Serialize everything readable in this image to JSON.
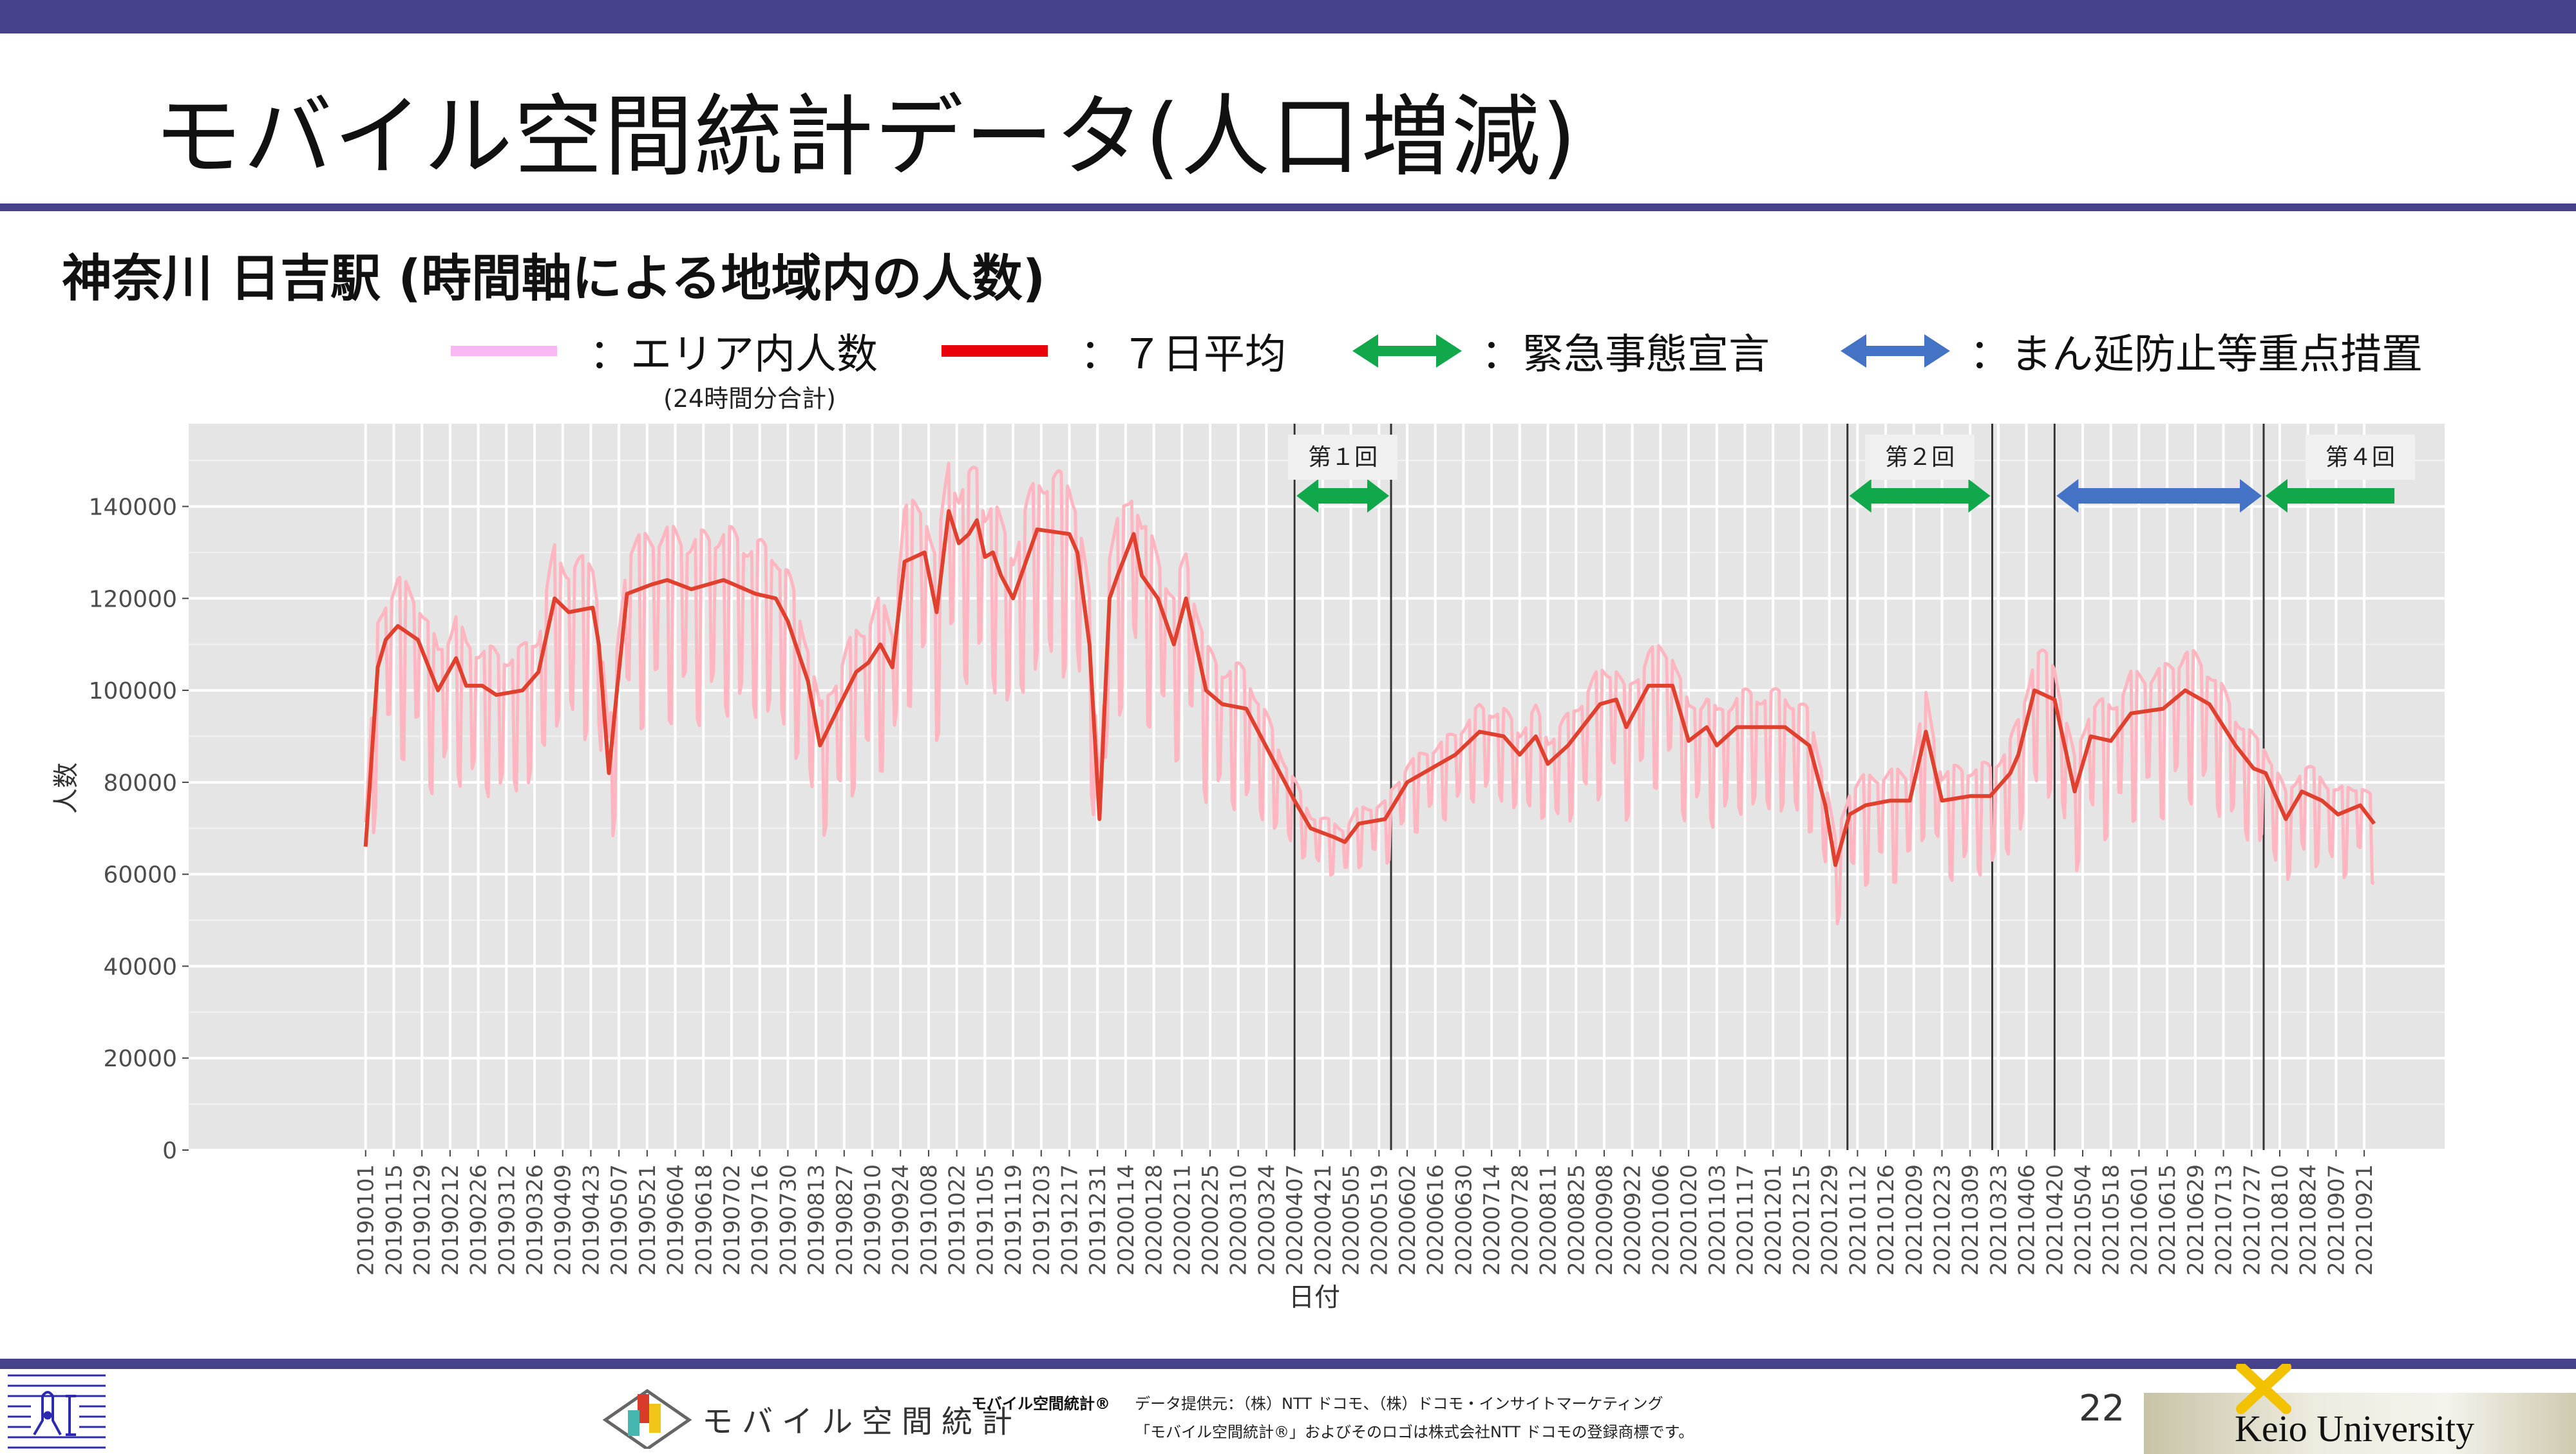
{
  "header": {
    "title": "モバイル空間統計データ(人口増減)",
    "subtitle": "神奈川 日吉駅 (時間軸による地域内の人数)"
  },
  "legend": {
    "daily": "：エリア内人数",
    "daily_note": "(24時間分合計)",
    "avg": "：７日平均",
    "emergency": "：緊急事態宣言",
    "semi_emergency": "：まん延防止等重点措置"
  },
  "colors": {
    "brand_bar": "#45418a",
    "daily_line": "#ffb6c1",
    "legend_daily": "#f9b8f4",
    "avg_line": "#e0402e",
    "legend_avg": "#e8000b",
    "emergency": "#10a84a",
    "semi_emergency": "#4472c4",
    "panel": "#e5e5e5"
  },
  "chart_data": {
    "type": "line",
    "xlabel": "日付",
    "ylabel": "人数",
    "x_origin": "2019-01-01",
    "x_unit": "days since origin",
    "xlim": [
      -88,
      1034
    ],
    "ylim": [
      0,
      158000
    ],
    "grid": true,
    "yticks": [
      0,
      20000,
      40000,
      60000,
      80000,
      100000,
      120000,
      140000
    ],
    "ytick_labels": [
      "0",
      "20000",
      "40000",
      "60000",
      "80000",
      "100000",
      "120000",
      "140000"
    ],
    "tick_interval_days": 14,
    "xtick_labels": [
      "20190101",
      "20190115",
      "20190129",
      "20190212",
      "20190226",
      "20190312",
      "20190326",
      "20190409",
      "20190423",
      "20190507",
      "20190521",
      "20190604",
      "20190618",
      "20190702",
      "20190716",
      "20190730",
      "20190813",
      "20190827",
      "20190910",
      "20190924",
      "20191008",
      "20191022",
      "20191105",
      "20191119",
      "20191203",
      "20191217",
      "20191231",
      "20200114",
      "20200128",
      "20200211",
      "20200225",
      "20200310",
      "20200324",
      "20200407",
      "20200421",
      "20200505",
      "20200519",
      "20200602",
      "20200616",
      "20200630",
      "20200714",
      "20200728",
      "20200811",
      "20200825",
      "20200908",
      "20200922",
      "20201006",
      "20201020",
      "20201103",
      "20201117",
      "20201201",
      "20201215",
      "20201229",
      "20210112",
      "20210126",
      "20210209",
      "20210223",
      "20210309",
      "20210323",
      "20210406",
      "20210420",
      "20210504",
      "20210518",
      "20210601",
      "20210615",
      "20210629",
      "20210713",
      "20210727",
      "20210810",
      "20210824",
      "20210907",
      "20210921"
    ],
    "series": [
      {
        "name": "７日平均",
        "points": [
          [
            0,
            66000
          ],
          [
            6,
            105000
          ],
          [
            10,
            111000
          ],
          [
            16,
            114000
          ],
          [
            26,
            111000
          ],
          [
            36,
            100000
          ],
          [
            45,
            107000
          ],
          [
            50,
            101000
          ],
          [
            58,
            101000
          ],
          [
            65,
            99000
          ],
          [
            78,
            100000
          ],
          [
            86,
            104000
          ],
          [
            94,
            120000
          ],
          [
            101,
            117000
          ],
          [
            113,
            118000
          ],
          [
            116,
            110000
          ],
          [
            121,
            82000
          ],
          [
            125,
            100000
          ],
          [
            130,
            121000
          ],
          [
            142,
            123000
          ],
          [
            150,
            124000
          ],
          [
            162,
            122000
          ],
          [
            178,
            124000
          ],
          [
            194,
            121000
          ],
          [
            204,
            120000
          ],
          [
            210,
            115000
          ],
          [
            220,
            102000
          ],
          [
            226,
            88000
          ],
          [
            236,
            97000
          ],
          [
            244,
            104000
          ],
          [
            250,
            106000
          ],
          [
            256,
            110000
          ],
          [
            262,
            105000
          ],
          [
            268,
            128000
          ],
          [
            278,
            130000
          ],
          [
            284,
            117000
          ],
          [
            290,
            139000
          ],
          [
            295,
            132000
          ],
          [
            300,
            134000
          ],
          [
            304,
            137000
          ],
          [
            308,
            129000
          ],
          [
            312,
            130000
          ],
          [
            316,
            125000
          ],
          [
            322,
            120000
          ],
          [
            334,
            135000
          ],
          [
            350,
            134000
          ],
          [
            354,
            130000
          ],
          [
            360,
            110000
          ],
          [
            365,
            72000
          ],
          [
            370,
            120000
          ],
          [
            374,
            125000
          ],
          [
            382,
            134000
          ],
          [
            386,
            125000
          ],
          [
            394,
            120000
          ],
          [
            402,
            110000
          ],
          [
            408,
            120000
          ],
          [
            418,
            100000
          ],
          [
            426,
            97000
          ],
          [
            438,
            96000
          ],
          [
            450,
            86000
          ],
          [
            462,
            76000
          ],
          [
            470,
            70000
          ],
          [
            482,
            68000
          ],
          [
            487,
            67000
          ],
          [
            494,
            71000
          ],
          [
            507,
            72000
          ],
          [
            518,
            80000
          ],
          [
            530,
            83000
          ],
          [
            542,
            86000
          ],
          [
            554,
            91000
          ],
          [
            566,
            90000
          ],
          [
            574,
            86000
          ],
          [
            582,
            90000
          ],
          [
            588,
            84000
          ],
          [
            598,
            88000
          ],
          [
            614,
            97000
          ],
          [
            622,
            98000
          ],
          [
            627,
            92000
          ],
          [
            638,
            101000
          ],
          [
            650,
            101000
          ],
          [
            658,
            89000
          ],
          [
            667,
            92000
          ],
          [
            672,
            88000
          ],
          [
            682,
            92000
          ],
          [
            694,
            92000
          ],
          [
            706,
            92000
          ],
          [
            718,
            88000
          ],
          [
            726,
            75000
          ],
          [
            731,
            62000
          ],
          [
            738,
            73000
          ],
          [
            746,
            75000
          ],
          [
            758,
            76000
          ],
          [
            768,
            76000
          ],
          [
            776,
            91000
          ],
          [
            784,
            76000
          ],
          [
            798,
            77000
          ],
          [
            808,
            77000
          ],
          [
            818,
            82000
          ],
          [
            822,
            86000
          ],
          [
            830,
            100000
          ],
          [
            840,
            98000
          ],
          [
            850,
            78000
          ],
          [
            858,
            90000
          ],
          [
            868,
            89000
          ],
          [
            878,
            95000
          ],
          [
            894,
            96000
          ],
          [
            905,
            100000
          ],
          [
            917,
            97000
          ],
          [
            930,
            88000
          ],
          [
            939,
            83000
          ],
          [
            945,
            82000
          ],
          [
            955,
            72000
          ],
          [
            963,
            78000
          ],
          [
            973,
            76000
          ],
          [
            981,
            73000
          ],
          [
            992,
            75000
          ],
          [
            999,
            71000
          ]
        ]
      },
      {
        "name": "エリア内人数",
        "weekday_ratio": [
          [
            0,
            0.08
          ],
          [
            440,
            0.08
          ],
          [
            470,
            0.04
          ],
          [
            540,
            0.05
          ],
          [
            620,
            0.07
          ],
          [
            900,
            0.08
          ],
          [
            999,
            0.06
          ]
        ]
      }
    ],
    "periods": [
      {
        "label": "第１回",
        "kind": "emergency",
        "start": 462,
        "end": 510
      },
      {
        "label": "第２回",
        "kind": "emergency",
        "start": 737,
        "end": 809
      },
      {
        "label": "",
        "kind": "semi_emergency",
        "start": 840,
        "end": 944
      },
      {
        "label": "第４回",
        "kind": "emergency",
        "start": 944,
        "end": 1010
      }
    ]
  },
  "footer": {
    "logo_text": "モバイル空間統計",
    "credit_name": "モバイル空間統計®",
    "credit_line1": "データ提供元：（株）NTT ドコモ、（株）ドコモ・インサイトマーケティング",
    "credit_line2": "「モバイル空間統計®」およびそのロゴは株式会社NTT ドコモの登録商標です。",
    "page_number": "22",
    "university": "Keio University"
  }
}
